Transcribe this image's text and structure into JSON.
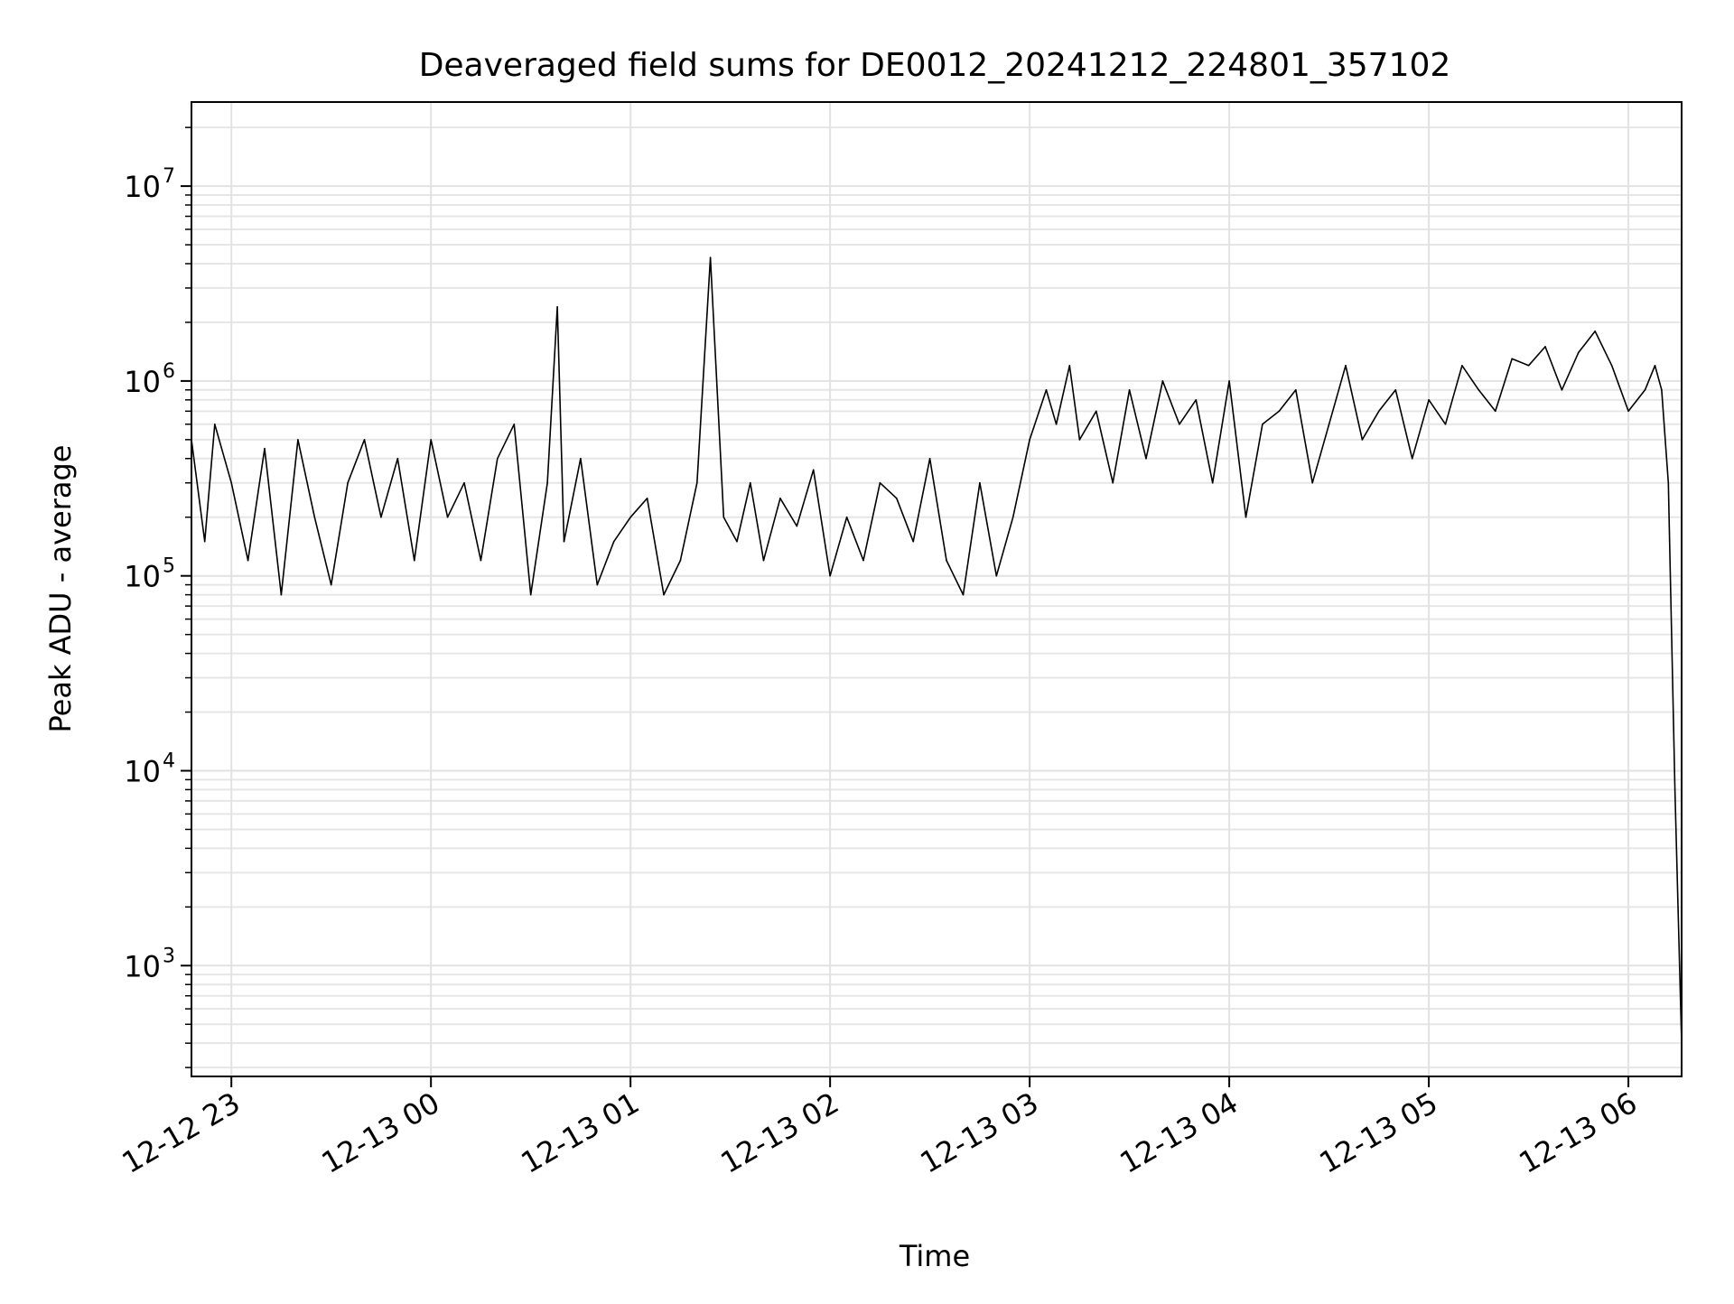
{
  "chart_data": {
    "type": "line",
    "title": "Deaveraged field sums for DE0012_20241212_224801_357102",
    "xlabel": "Time",
    "ylabel": "Peak ADU - average",
    "yscale": "log",
    "ylim": [
      270,
      27000000
    ],
    "xlim": [
      "2024-12-12 22:48",
      "2024-12-13 06:16"
    ],
    "grid": true,
    "line_color": "#000000",
    "x_ticks": [
      {
        "t": "2024-12-12 23:00",
        "label": "12-12 23"
      },
      {
        "t": "2024-12-13 00:00",
        "label": "12-13 00"
      },
      {
        "t": "2024-12-13 01:00",
        "label": "12-13 01"
      },
      {
        "t": "2024-12-13 02:00",
        "label": "12-13 02"
      },
      {
        "t": "2024-12-13 03:00",
        "label": "12-13 03"
      },
      {
        "t": "2024-12-13 04:00",
        "label": "12-13 04"
      },
      {
        "t": "2024-12-13 05:00",
        "label": "12-13 05"
      },
      {
        "t": "2024-12-13 06:00",
        "label": "12-13 06"
      }
    ],
    "y_ticks": [
      {
        "value": 1000,
        "label": "10",
        "exp": "3"
      },
      {
        "value": 10000,
        "label": "10",
        "exp": "4"
      },
      {
        "value": 100000,
        "label": "10",
        "exp": "5"
      },
      {
        "value": 1000000,
        "label": "10",
        "exp": "6"
      },
      {
        "value": 10000000,
        "label": "10",
        "exp": "7"
      }
    ],
    "series": [
      {
        "x": [
          "2024-12-12 22:48",
          "2024-12-12 22:52",
          "2024-12-12 22:55",
          "2024-12-12 23:00",
          "2024-12-12 23:05",
          "2024-12-12 23:10",
          "2024-12-12 23:15",
          "2024-12-12 23:20",
          "2024-12-12 23:25",
          "2024-12-12 23:30",
          "2024-12-12 23:35",
          "2024-12-12 23:40",
          "2024-12-12 23:45",
          "2024-12-12 23:50",
          "2024-12-12 23:55",
          "2024-12-13 00:00",
          "2024-12-13 00:05",
          "2024-12-13 00:10",
          "2024-12-13 00:15",
          "2024-12-13 00:20",
          "2024-12-13 00:25",
          "2024-12-13 00:30",
          "2024-12-13 00:35",
          "2024-12-13 00:38",
          "2024-12-13 00:40",
          "2024-12-13 00:45",
          "2024-12-13 00:50",
          "2024-12-13 00:55",
          "2024-12-13 01:00",
          "2024-12-13 01:05",
          "2024-12-13 01:10",
          "2024-12-13 01:15",
          "2024-12-13 01:20",
          "2024-12-13 01:24",
          "2024-12-13 01:28",
          "2024-12-13 01:32",
          "2024-12-13 01:36",
          "2024-12-13 01:40",
          "2024-12-13 01:45",
          "2024-12-13 01:50",
          "2024-12-13 01:55",
          "2024-12-13 02:00",
          "2024-12-13 02:05",
          "2024-12-13 02:10",
          "2024-12-13 02:15",
          "2024-12-13 02:20",
          "2024-12-13 02:25",
          "2024-12-13 02:30",
          "2024-12-13 02:35",
          "2024-12-13 02:40",
          "2024-12-13 02:45",
          "2024-12-13 02:50",
          "2024-12-13 02:55",
          "2024-12-13 03:00",
          "2024-12-13 03:05",
          "2024-12-13 03:08",
          "2024-12-13 03:12",
          "2024-12-13 03:15",
          "2024-12-13 03:20",
          "2024-12-13 03:25",
          "2024-12-13 03:30",
          "2024-12-13 03:35",
          "2024-12-13 03:40",
          "2024-12-13 03:45",
          "2024-12-13 03:50",
          "2024-12-13 03:55",
          "2024-12-13 04:00",
          "2024-12-13 04:05",
          "2024-12-13 04:10",
          "2024-12-13 04:15",
          "2024-12-13 04:20",
          "2024-12-13 04:25",
          "2024-12-13 04:30",
          "2024-12-13 04:35",
          "2024-12-13 04:40",
          "2024-12-13 04:45",
          "2024-12-13 04:50",
          "2024-12-13 04:55",
          "2024-12-13 05:00",
          "2024-12-13 05:05",
          "2024-12-13 05:10",
          "2024-12-13 05:15",
          "2024-12-13 05:20",
          "2024-12-13 05:25",
          "2024-12-13 05:30",
          "2024-12-13 05:35",
          "2024-12-13 05:40",
          "2024-12-13 05:45",
          "2024-12-13 05:50",
          "2024-12-13 05:55",
          "2024-12-13 06:00",
          "2024-12-13 06:05",
          "2024-12-13 06:08",
          "2024-12-13 06:10",
          "2024-12-13 06:12",
          "2024-12-13 06:14",
          "2024-12-13 06:16"
        ],
        "y": [
          500000,
          150000,
          600000,
          300000,
          120000,
          450000,
          80000,
          500000,
          200000,
          90000,
          300000,
          500000,
          200000,
          400000,
          120000,
          500000,
          200000,
          300000,
          120000,
          400000,
          600000,
          80000,
          300000,
          2400000,
          150000,
          400000,
          90000,
          150000,
          200000,
          250000,
          80000,
          120000,
          300000,
          4300000,
          200000,
          150000,
          300000,
          120000,
          250000,
          180000,
          350000,
          100000,
          200000,
          120000,
          300000,
          250000,
          150000,
          400000,
          120000,
          80000,
          300000,
          100000,
          200000,
          500000,
          900000,
          600000,
          1200000,
          500000,
          700000,
          300000,
          900000,
          400000,
          1000000,
          600000,
          800000,
          300000,
          1000000,
          200000,
          600000,
          700000,
          900000,
          300000,
          600000,
          1200000,
          500000,
          700000,
          900000,
          400000,
          800000,
          600000,
          1200000,
          900000,
          700000,
          1300000,
          1200000,
          1500000,
          900000,
          1400000,
          1800000,
          1200000,
          700000,
          900000,
          1200000,
          900000,
          300000,
          8000,
          400
        ]
      }
    ]
  }
}
